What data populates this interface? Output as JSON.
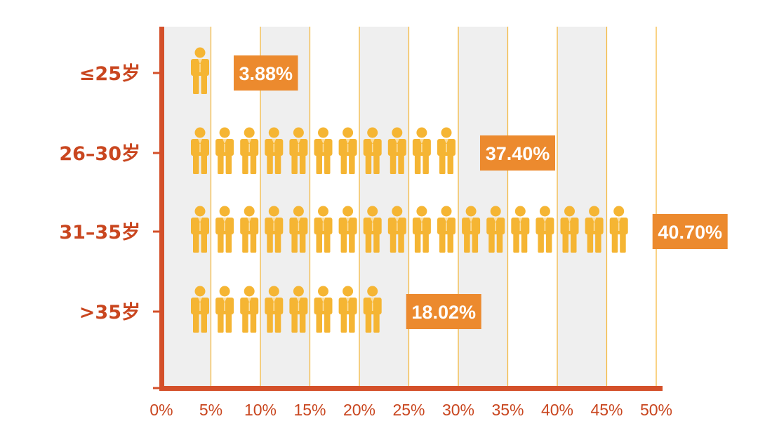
{
  "chart_data": {
    "type": "bar",
    "orientation": "horizontal",
    "style": "pictograph",
    "categories": [
      "≤25岁",
      "26–30岁",
      "31–35岁",
      ">35岁"
    ],
    "values": [
      3.88,
      37.4,
      40.7,
      18.02
    ],
    "value_labels": [
      "3.88%",
      "37.40%",
      "40.70%",
      "18.02%"
    ],
    "icon_counts": [
      1,
      11,
      18,
      8
    ],
    "x_ticks": [
      "0%",
      "5%",
      "10%",
      "15%",
      "20%",
      "25%",
      "30%",
      "35%",
      "40%",
      "45%",
      "50%"
    ],
    "xlim": [
      0,
      50
    ],
    "x_unit": "%",
    "grid": "vertical alternating bands",
    "icon": "person-icon",
    "colors": {
      "axis": "#D4502A",
      "label_text": "#C9461F",
      "icon": "#F5B533",
      "value_box": "#EC8A2E",
      "value_text": "#FFFFFF",
      "band": "#EFEFEF",
      "gridline": "#F5B533"
    }
  }
}
